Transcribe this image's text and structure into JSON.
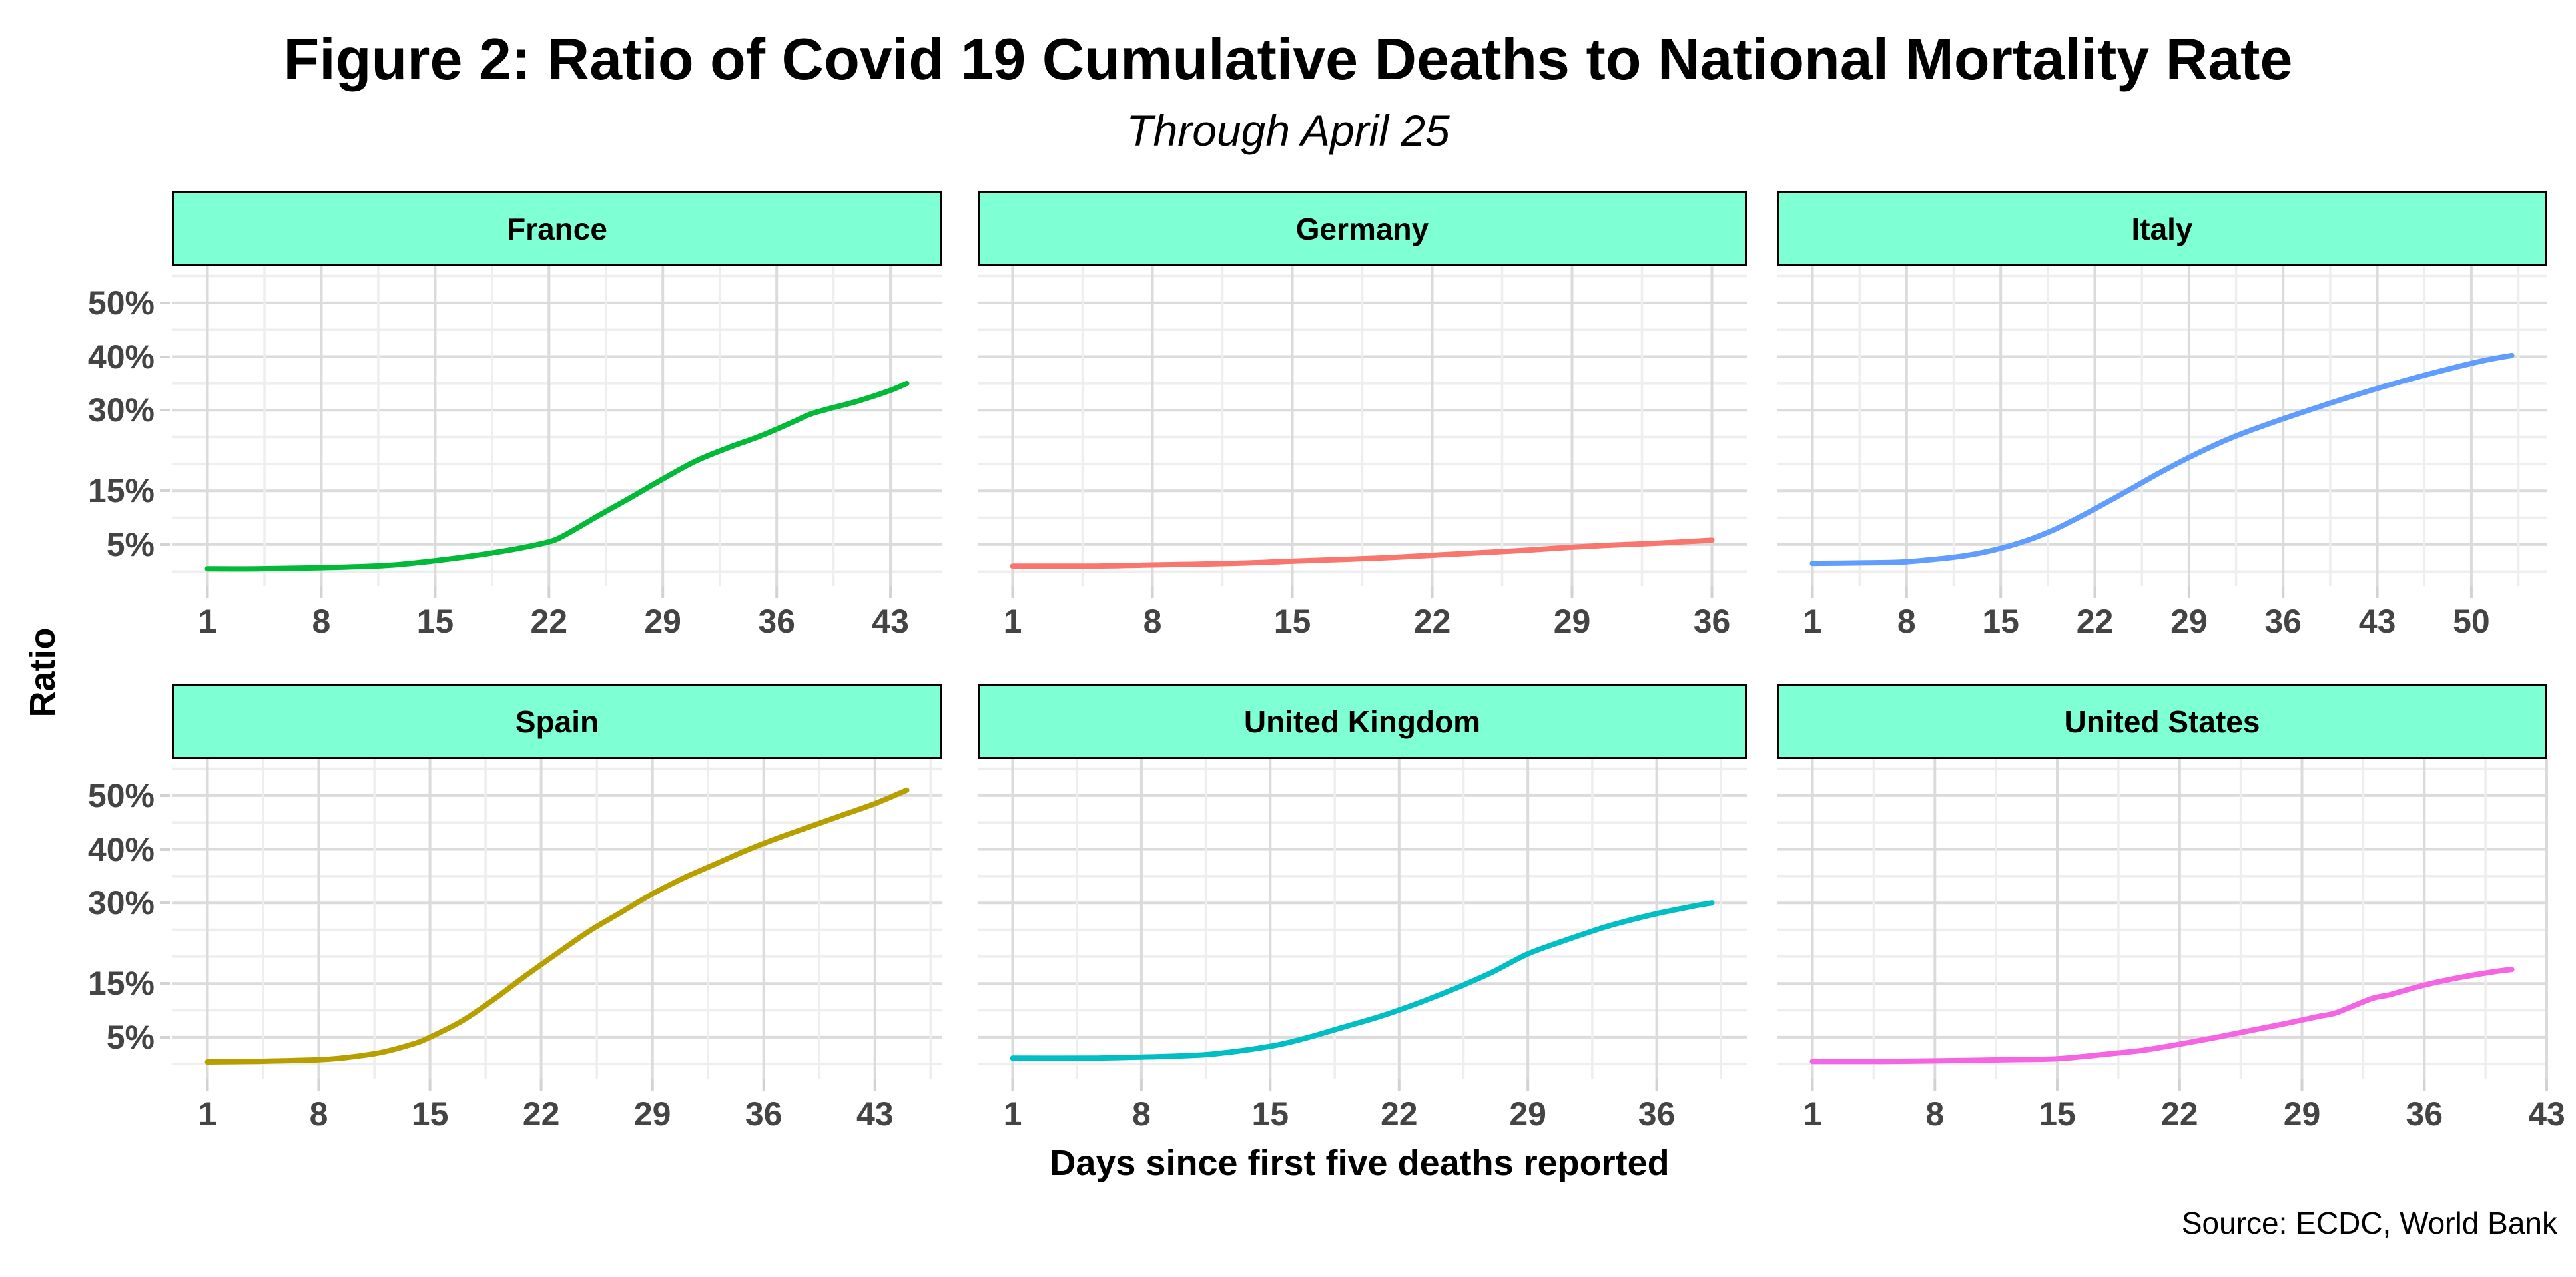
{
  "figure": {
    "title": "Figure 2: Ratio of Covid 19 Cumulative Deaths to National Mortality Rate",
    "subtitle": "Through April 25",
    "y_axis_title": "Ratio",
    "x_axis_title": "Days since first five deaths reported",
    "caption": "Source: ECDC, World Bank"
  },
  "style": {
    "strip_fill": "#7FFFD4",
    "strip_border": "#000000",
    "grid_major": "#DBDBDB",
    "grid_minor": "#EEEEEE",
    "tick_color": "#D2D2D2",
    "axis_text": "#444444",
    "background": "#FFFFFF"
  },
  "chart_data": {
    "type": "line",
    "unit": "%",
    "grid": "on",
    "legend": "none",
    "facet_variable": "country",
    "x_axis": "Days since first five deaths reported",
    "y_axis": "Ratio of cumulative Covid-19 deaths to national mortality rate",
    "y_scale": {
      "labeled_breaks": [
        5,
        15,
        30,
        40,
        50
      ],
      "labels": [
        "5%",
        "15%",
        "30%",
        "40%",
        "50%"
      ],
      "grid_step": 5,
      "grid_min": 0,
      "grid_max": 55,
      "domain": [
        -2.7,
        56.8
      ]
    },
    "panels": [
      {
        "name": "France",
        "color": "#00BA38",
        "x_ticks": [
          1,
          8,
          15,
          22,
          29,
          36,
          43
        ],
        "x_domain": [
          -1.15,
          46.15
        ],
        "points": [
          [
            1,
            0.5
          ],
          [
            4,
            0.5
          ],
          [
            8,
            0.7
          ],
          [
            12,
            1.1
          ],
          [
            15,
            2.0
          ],
          [
            18,
            3.2
          ],
          [
            20,
            4.2
          ],
          [
            22,
            5.5
          ],
          [
            23,
            6.8
          ],
          [
            25,
            10.3
          ],
          [
            27,
            13.7
          ],
          [
            29,
            17.2
          ],
          [
            31,
            20.5
          ],
          [
            33,
            23.0
          ],
          [
            35,
            25.2
          ],
          [
            37,
            27.8
          ],
          [
            38,
            29.2
          ],
          [
            39,
            30.1
          ],
          [
            41,
            31.7
          ],
          [
            43,
            33.7
          ],
          [
            44,
            35.0
          ]
        ]
      },
      {
        "name": "Germany",
        "color": "#F8766D",
        "x_ticks": [
          1,
          8,
          15,
          22,
          29,
          36
        ],
        "x_domain": [
          -0.75,
          37.75
        ],
        "points": [
          [
            1,
            1.0
          ],
          [
            5,
            1.0
          ],
          [
            8,
            1.2
          ],
          [
            12,
            1.5
          ],
          [
            15,
            1.9
          ],
          [
            18,
            2.3
          ],
          [
            20,
            2.6
          ],
          [
            22,
            3.0
          ],
          [
            25,
            3.6
          ],
          [
            27,
            4.0
          ],
          [
            29,
            4.5
          ],
          [
            31,
            4.9
          ],
          [
            33,
            5.2
          ],
          [
            36,
            5.8
          ]
        ]
      },
      {
        "name": "Italy",
        "color": "#619CFF",
        "x_ticks": [
          1,
          8,
          15,
          22,
          29,
          36,
          43,
          50
        ],
        "x_domain": [
          -1.6,
          55.6
        ],
        "points": [
          [
            1,
            1.5
          ],
          [
            5,
            1.6
          ],
          [
            8,
            1.8
          ],
          [
            11,
            2.5
          ],
          [
            13,
            3.2
          ],
          [
            15,
            4.3
          ],
          [
            17,
            5.8
          ],
          [
            19,
            7.8
          ],
          [
            21,
            10.3
          ],
          [
            23,
            13.0
          ],
          [
            25,
            15.8
          ],
          [
            27,
            18.6
          ],
          [
            29,
            21.2
          ],
          [
            31,
            23.6
          ],
          [
            33,
            25.7
          ],
          [
            36,
            28.4
          ],
          [
            39,
            30.9
          ],
          [
            42,
            33.3
          ],
          [
            45,
            35.5
          ],
          [
            48,
            37.5
          ],
          [
            51,
            39.3
          ],
          [
            53,
            40.2
          ]
        ]
      },
      {
        "name": "Spain",
        "color": "#B79F00",
        "x_ticks": [
          1,
          8,
          15,
          22,
          29,
          36,
          43
        ],
        "x_domain": [
          -1.2,
          47.2
        ],
        "points": [
          [
            1,
            0.4
          ],
          [
            4,
            0.5
          ],
          [
            8,
            0.8
          ],
          [
            10,
            1.3
          ],
          [
            12,
            2.2
          ],
          [
            14,
            3.8
          ],
          [
            15,
            5.0
          ],
          [
            17,
            8.0
          ],
          [
            19,
            12.0
          ],
          [
            21,
            16.4
          ],
          [
            23,
            20.6
          ],
          [
            25,
            24.7
          ],
          [
            27,
            28.2
          ],
          [
            29,
            31.7
          ],
          [
            31,
            34.7
          ],
          [
            33,
            37.3
          ],
          [
            35,
            39.9
          ],
          [
            37,
            42.2
          ],
          [
            39,
            44.3
          ],
          [
            41,
            46.4
          ],
          [
            43,
            48.5
          ],
          [
            45,
            51.0
          ]
        ]
      },
      {
        "name": "United Kingdom",
        "color": "#00BFC4",
        "x_ticks": [
          1,
          8,
          15,
          22,
          29,
          36
        ],
        "x_domain": [
          -0.9,
          40.9
        ],
        "points": [
          [
            1,
            1.1
          ],
          [
            5,
            1.1
          ],
          [
            8,
            1.3
          ],
          [
            10,
            1.5
          ],
          [
            12,
            1.9
          ],
          [
            15,
            3.3
          ],
          [
            17,
            4.9
          ],
          [
            19,
            6.9
          ],
          [
            21,
            8.9
          ],
          [
            23,
            11.3
          ],
          [
            25,
            14.0
          ],
          [
            27,
            17.0
          ],
          [
            29,
            20.5
          ],
          [
            31,
            23.0
          ],
          [
            33,
            25.3
          ],
          [
            34,
            26.3
          ],
          [
            36,
            28.0
          ],
          [
            38,
            29.4
          ],
          [
            39,
            30.0
          ]
        ]
      },
      {
        "name": "United States",
        "color": "#F564E3",
        "x_ticks": [
          1,
          8,
          15,
          22,
          29,
          36,
          43
        ],
        "x_domain": [
          -1.0,
          43.0
        ],
        "points": [
          [
            1,
            0.5
          ],
          [
            5,
            0.5
          ],
          [
            8,
            0.6
          ],
          [
            12,
            0.8
          ],
          [
            15,
            1.0
          ],
          [
            18,
            1.9
          ],
          [
            20,
            2.6
          ],
          [
            22,
            3.7
          ],
          [
            24,
            4.9
          ],
          [
            26,
            6.2
          ],
          [
            28,
            7.5
          ],
          [
            30,
            8.9
          ],
          [
            31,
            9.6
          ],
          [
            33,
            12.2
          ],
          [
            34,
            12.9
          ],
          [
            36,
            14.7
          ],
          [
            38,
            16.1
          ],
          [
            40,
            17.2
          ],
          [
            41,
            17.6
          ]
        ]
      }
    ]
  }
}
